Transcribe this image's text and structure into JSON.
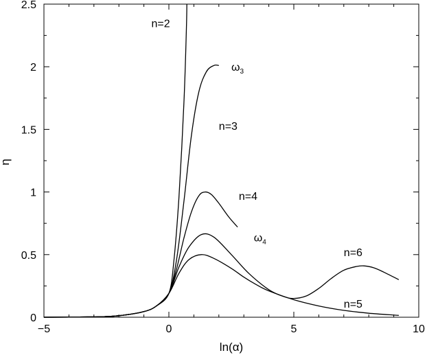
{
  "chart_data": {
    "type": "line",
    "xlabel": "ln(α)",
    "ylabel": "η",
    "xlim": [
      -5,
      10
    ],
    "ylim": [
      0,
      2.5
    ],
    "xticks": [
      -5,
      0,
      5,
      10
    ],
    "yticks": [
      0,
      0.5,
      1,
      1.5,
      2,
      2.5
    ],
    "grid": false,
    "annotations": [
      {
        "text": "n=2",
        "x": -0.7,
        "y": 2.35
      },
      {
        "text": "ω",
        "sub": "3",
        "x": 2.5,
        "y": 2.0
      },
      {
        "text": "n=3",
        "x": 2.0,
        "y": 1.53
      },
      {
        "text": "n=4",
        "x": 2.8,
        "y": 0.97
      },
      {
        "text": "ω",
        "sub": "4",
        "x": 3.4,
        "y": 0.64
      },
      {
        "text": "n=6",
        "x": 7.0,
        "y": 0.52
      },
      {
        "text": "n=5",
        "x": 7.0,
        "y": 0.11
      }
    ],
    "series": [
      {
        "key": "n2",
        "x": [
          -5,
          -3,
          -2,
          -1,
          -0.5,
          0,
          0.2,
          0.4,
          0.6,
          0.7,
          0.72
        ],
        "y": [
          0,
          0.003,
          0.012,
          0.045,
          0.09,
          0.19,
          0.45,
          0.95,
          1.7,
          2.3,
          2.5
        ]
      },
      {
        "key": "n3",
        "x": [
          -5,
          -3,
          -2,
          -1,
          -0.5,
          0,
          0.3,
          0.6,
          0.9,
          1.2,
          1.5,
          1.8,
          2.0
        ],
        "y": [
          0,
          0.003,
          0.012,
          0.045,
          0.09,
          0.19,
          0.45,
          0.92,
          1.45,
          1.8,
          1.96,
          2.01,
          2.01
        ]
      },
      {
        "key": "n4",
        "x": [
          -5,
          -3,
          -2,
          -1,
          -0.5,
          0,
          0.3,
          0.6,
          0.9,
          1.2,
          1.45,
          1.7,
          2.0,
          2.4,
          2.75
        ],
        "y": [
          0,
          0.003,
          0.012,
          0.045,
          0.09,
          0.19,
          0.38,
          0.63,
          0.84,
          0.97,
          1.0,
          0.98,
          0.91,
          0.8,
          0.72
        ]
      },
      {
        "key": "n6",
        "x": [
          -5,
          -3,
          -2,
          -1,
          -0.5,
          0,
          0.4,
          0.8,
          1.3,
          1.8,
          2.5,
          3.2,
          4.0,
          4.6,
          5.0,
          5.5,
          6.0,
          6.5,
          7.0,
          7.5,
          7.8,
          8.2,
          8.6,
          9.2
        ],
        "y": [
          0,
          0.003,
          0.012,
          0.045,
          0.09,
          0.19,
          0.4,
          0.56,
          0.66,
          0.64,
          0.5,
          0.35,
          0.22,
          0.165,
          0.15,
          0.17,
          0.23,
          0.31,
          0.375,
          0.405,
          0.41,
          0.395,
          0.36,
          0.3
        ]
      },
      {
        "key": "n5",
        "x": [
          -5,
          -3,
          -2,
          -1,
          -0.5,
          0,
          0.4,
          0.8,
          1.3,
          1.8,
          2.5,
          3.0,
          3.5,
          4.0,
          5.0,
          6.0,
          7.0,
          8.0,
          9.2
        ],
        "y": [
          0,
          0.003,
          0.012,
          0.045,
          0.09,
          0.19,
          0.35,
          0.46,
          0.5,
          0.47,
          0.39,
          0.32,
          0.26,
          0.21,
          0.14,
          0.09,
          0.055,
          0.032,
          0.015
        ]
      }
    ]
  }
}
